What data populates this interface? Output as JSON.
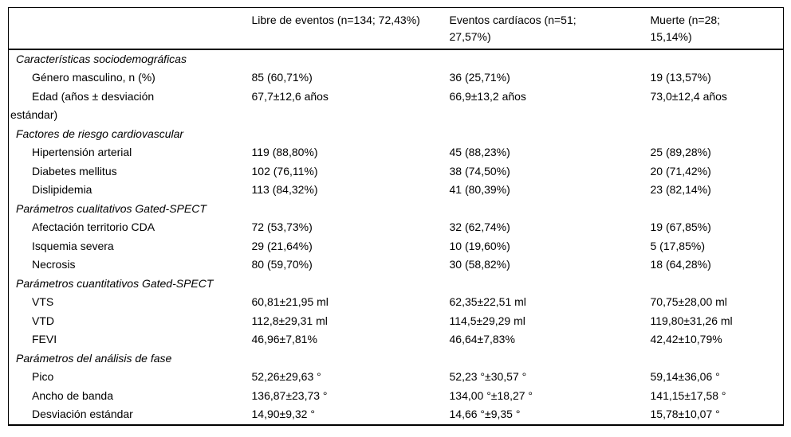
{
  "colors": {
    "text": "#000000",
    "border": "#000000",
    "background": "#ffffff"
  },
  "table": {
    "header": {
      "columns": [
        "Libre de eventos (n=134; 72,43%)",
        "Eventos cardíacos (n=51; 27,57%)",
        "Muerte (n=28; 15,14%)"
      ]
    },
    "sections": [
      {
        "title": "Características sociodemográficas",
        "rows": [
          {
            "label": "Género masculino, n (%)",
            "values": [
              "85 (60,71%)",
              "36 (25,71%)",
              "19 (13,57%)"
            ]
          },
          {
            "label": "Edad (años ± desviación estándar)",
            "values": [
              "67,7±12,6 años",
              "66,9±13,2 años",
              "73,0±12,4 años"
            ]
          }
        ]
      },
      {
        "title": "Factores de riesgo cardiovascular",
        "rows": [
          {
            "label": "Hipertensión arterial",
            "values": [
              "119 (88,80%)",
              "45 (88,23%)",
              "25 (89,28%)"
            ]
          },
          {
            "label": "Diabetes mellitus",
            "values": [
              "102 (76,11%)",
              "38 (74,50%)",
              "20 (71,42%)"
            ]
          },
          {
            "label": "Dislipidemia",
            "values": [
              "113 (84,32%)",
              "41 (80,39%)",
              "23 (82,14%)"
            ]
          }
        ]
      },
      {
        "title": "Parámetros cualitativos Gated-SPECT",
        "rows": [
          {
            "label": "Afectación territorio CDA",
            "values": [
              "72 (53,73%)",
              "32 (62,74%)",
              "19 (67,85%)"
            ]
          },
          {
            "label": "Isquemia severa",
            "values": [
              "29 (21,64%)",
              "10 (19,60%)",
              "5 (17,85%)"
            ]
          },
          {
            "label": "Necrosis",
            "values": [
              "80 (59,70%)",
              "30 (58,82%)",
              "18 (64,28%)"
            ]
          }
        ]
      },
      {
        "title": "Parámetros cuantitativos Gated-SPECT",
        "rows": [
          {
            "label": "VTS",
            "values": [
              "60,81±21,95 ml",
              "62,35±22,51 ml",
              "70,75±28,00 ml"
            ]
          },
          {
            "label": "VTD",
            "values": [
              "112,8±29,31 ml",
              "114,5±29,29 ml",
              "119,80±31,26 ml"
            ]
          },
          {
            "label": "FEVI",
            "values": [
              "46,96±7,81%",
              "46,64±7,83%",
              "42,42±10,79%"
            ]
          }
        ]
      },
      {
        "title": "Parámetros del análisis de fase",
        "rows": [
          {
            "label": "Pico",
            "values": [
              "52,26±29,63 °",
              "52,23 °±30,57 °",
              "59,14±36,06 °"
            ]
          },
          {
            "label": "Ancho de banda",
            "values": [
              "136,87±23,73 °",
              "134,00 °±18,27 °",
              "141,15±17,58 °"
            ]
          },
          {
            "label": "Desviación estándar",
            "values": [
              "14,90±9,32 °",
              "14,66 °±9,35 °",
              "15,78±10,07 °"
            ]
          }
        ]
      }
    ]
  }
}
